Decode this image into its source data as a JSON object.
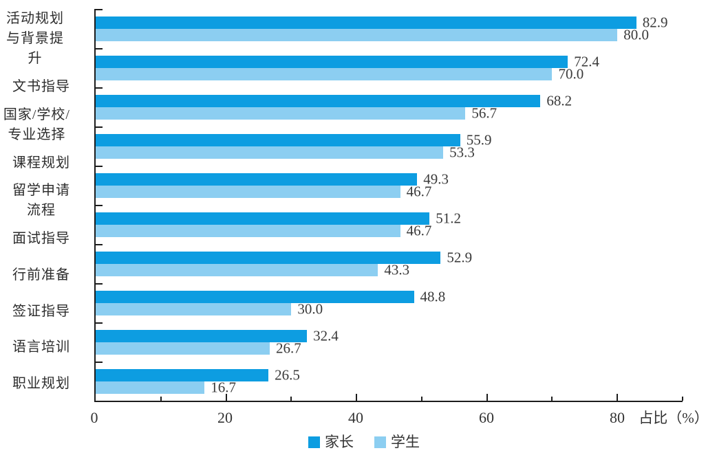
{
  "chart_data": {
    "type": "bar",
    "orientation": "horizontal",
    "title": "",
    "xlabel": "占比（%）",
    "ylabel": "",
    "xlim": [
      0,
      90
    ],
    "x_major_ticks": [
      0,
      20,
      40,
      60,
      80
    ],
    "x_minor_ticks": [
      10,
      30,
      50,
      70,
      90
    ],
    "grid": false,
    "legend_position": "bottom",
    "value_labels": true,
    "value_label_decimals": 1,
    "categories": [
      "活动规划\n与背景提升",
      "文书指导",
      "国家/学校/\n专业选择",
      "课程规划",
      "留学申请\n流程",
      "面试指导",
      "行前准备",
      "签证指导",
      "语言培训",
      "职业规划"
    ],
    "series": [
      {
        "name": "家长",
        "color": "#0d9de1",
        "values": [
          82.9,
          72.4,
          68.2,
          55.9,
          49.3,
          51.2,
          52.9,
          48.8,
          32.4,
          26.5
        ]
      },
      {
        "name": "学生",
        "color": "#8ccef1",
        "values": [
          80.0,
          70.0,
          56.7,
          53.3,
          46.7,
          46.7,
          43.3,
          30.0,
          26.7,
          16.7
        ]
      }
    ],
    "axis_color": "#1c1c1c",
    "text_color": "#333333"
  }
}
